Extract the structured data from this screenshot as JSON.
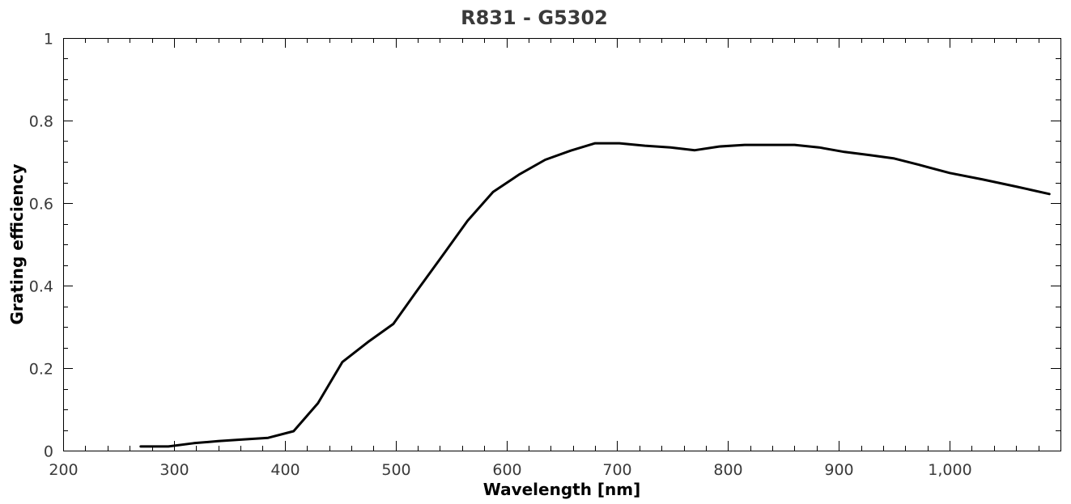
{
  "chart_data": {
    "type": "line",
    "title": "R831 - G5302",
    "xlabel": "Wavelength [nm]",
    "ylabel": "Grating efficiency",
    "xlim": [
      200,
      1100
    ],
    "ylim": [
      0,
      1
    ],
    "x_ticks": [
      200,
      300,
      400,
      500,
      600,
      700,
      800,
      900,
      1000
    ],
    "x_tick_labels": [
      "200",
      "300",
      "400",
      "500",
      "600",
      "700",
      "800",
      "900",
      "1,000"
    ],
    "x_minor_step": 20,
    "y_ticks": [
      0,
      0.2,
      0.4,
      0.6,
      0.8,
      1
    ],
    "y_tick_labels": [
      "0",
      "0.2",
      "0.4",
      "0.6",
      "0.8",
      "1"
    ],
    "y_minor_step": 0.05,
    "grid": false,
    "series": [
      {
        "color": "#000000",
        "x": [
          270,
          295,
          318,
          340,
          362,
          385,
          408,
          430,
          452,
          475,
          498,
          520,
          543,
          565,
          588,
          612,
          635,
          658,
          680,
          702,
          725,
          748,
          770,
          792,
          815,
          838,
          860,
          882,
          905,
          928,
          950,
          972,
          1000,
          1030,
          1060,
          1090
        ],
        "y": [
          0.01,
          0.01,
          0.018,
          0.023,
          0.027,
          0.031,
          0.047,
          0.115,
          0.215,
          0.263,
          0.307,
          0.39,
          0.475,
          0.557,
          0.627,
          0.67,
          0.705,
          0.727,
          0.745,
          0.745,
          0.739,
          0.735,
          0.728,
          0.737,
          0.741,
          0.741,
          0.741,
          0.735,
          0.724,
          0.716,
          0.708,
          0.693,
          0.673,
          0.657,
          0.64,
          0.622
        ]
      }
    ]
  }
}
